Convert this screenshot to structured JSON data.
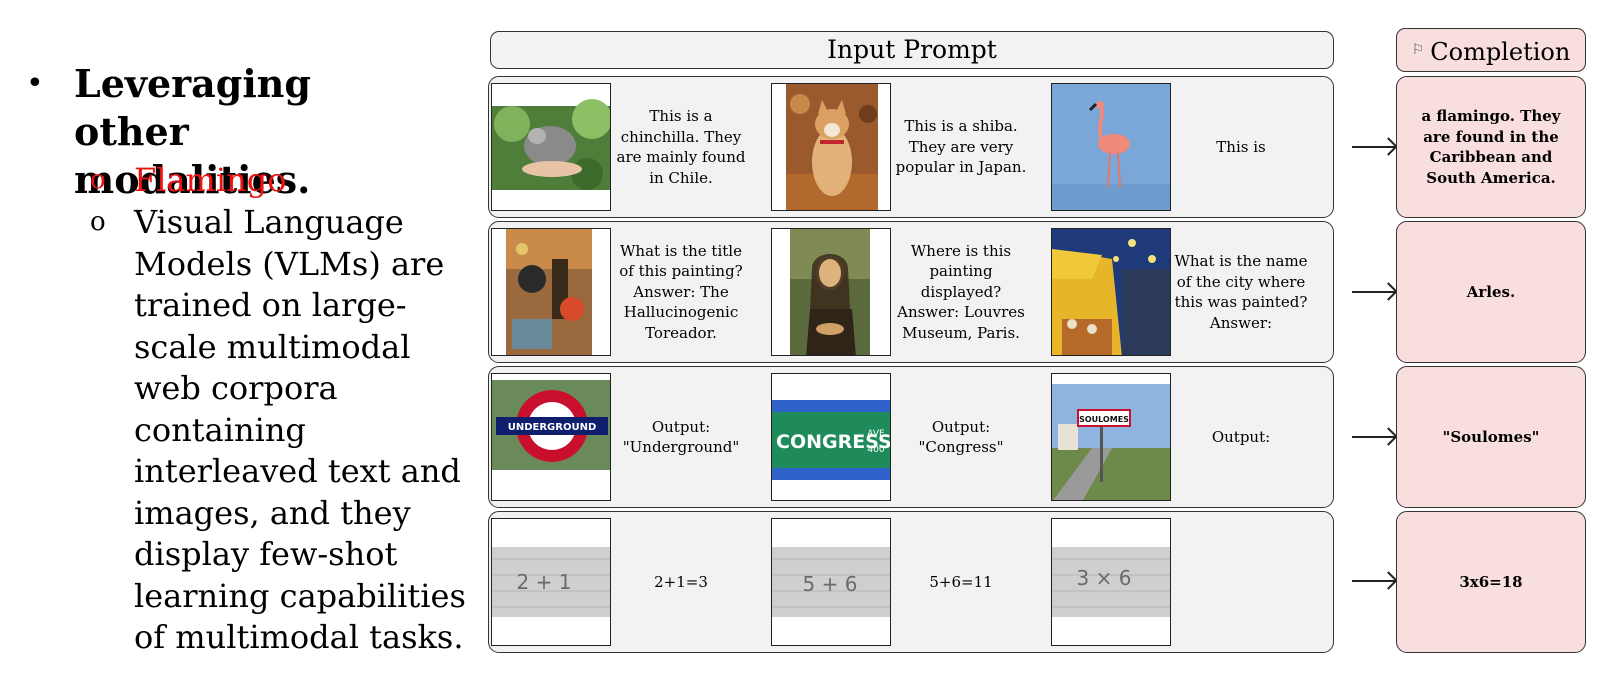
{
  "left_panel": {
    "bullet": "•",
    "title": "Leveraging other modalities.",
    "sub_marker": "o",
    "sub1": "Flamingo",
    "sub2_lines": [
      "Visual Language",
      "Models (VLMs) are",
      "trained on large-",
      "scale multimodal",
      "web corpora",
      "containing",
      "interleaved text and",
      "images, and they",
      "display few-shot",
      "learning capabilities",
      "of multimodal tasks."
    ]
  },
  "headers": {
    "input_prompt": "Input Prompt",
    "completion": "Completion",
    "completion_icon": "chat-bubble-icon"
  },
  "rows": [
    {
      "captions": [
        "This is a chinchilla. They are mainly found in Chile.",
        "This is a shiba. They are very popular in Japan.",
        "This is"
      ],
      "images": [
        "chinchilla-photo",
        "shiba-photo",
        "flamingo-photo"
      ],
      "completion": "a flamingo. They are found in the Caribbean and South America."
    },
    {
      "captions": [
        "What is the title of this painting? Answer: The Hallucinogenic Toreador.",
        "Where is this painting displayed? Answer: Louvres Museum, Paris.",
        "What is the name of the city where this was painted? Answer:"
      ],
      "images": [
        "hallucinogenic-toreador-painting",
        "mona-lisa-painting",
        "cafe-terrace-painting"
      ],
      "completion": "Arles."
    },
    {
      "captions": [
        "Output: \"Underground\"",
        "Output: \"Congress\"",
        "Output:"
      ],
      "images": [
        "underground-sign-photo",
        "congress-sign-photo",
        "soulomes-sign-photo"
      ],
      "image_text": [
        "UNDERGROUND",
        "CONGRESS",
        "AVE",
        "400",
        "SOULOMES"
      ],
      "completion": "\"Soulomes\""
    },
    {
      "captions": [
        "2+1=3",
        "5+6=11",
        ""
      ],
      "images": [
        "handwritten-2+1",
        "handwritten-5+6",
        "handwritten-3x6"
      ],
      "image_text": [
        "2 + 1",
        "5 + 6",
        "3 × 6"
      ],
      "completion": "3x6=18"
    }
  ]
}
